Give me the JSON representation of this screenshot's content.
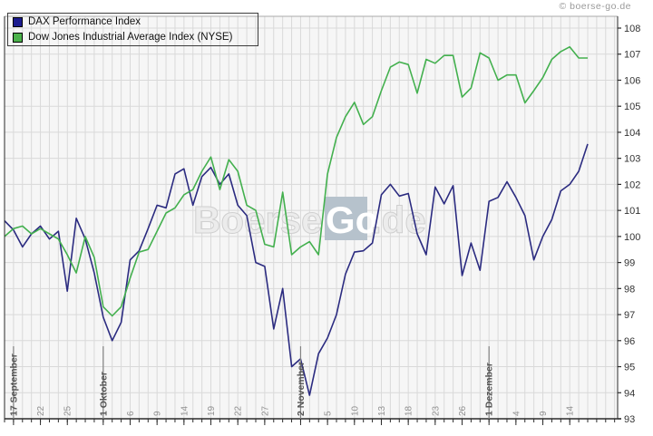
{
  "header": {
    "copyright": "© boerse-go.de"
  },
  "watermark": {
    "part1": "Boerse",
    "part2": "Go",
    "part3": ".de"
  },
  "colors": {
    "dax_line": "#2b2b80",
    "dax_swatch": "#1c1c8f",
    "dow_line": "#43b04e",
    "dow_swatch": "#4cb24c",
    "plot_bg": "#f6f6f6",
    "grid": "#d9d9d9",
    "axis": "#2a2a2a",
    "top_border": "#aaaaaa",
    "month_tick_line": "#828282",
    "watermark_box": "#b6c2cc"
  },
  "chart_data": {
    "type": "line",
    "title": "",
    "xlabel": "",
    "ylabel": "",
    "ylim": [
      93,
      108
    ],
    "grid": true,
    "legend_position": "top-left",
    "y_ticks": [
      93,
      94,
      95,
      96,
      97,
      98,
      99,
      100,
      101,
      102,
      103,
      104,
      105,
      106,
      107,
      108
    ],
    "x_ticks": [
      {
        "i": 1,
        "label": "17 September",
        "major": true
      },
      {
        "i": 4,
        "label": "22"
      },
      {
        "i": 7,
        "label": "25"
      },
      {
        "i": 11,
        "label": "1 Oktober",
        "major": true
      },
      {
        "i": 14,
        "label": "6"
      },
      {
        "i": 17,
        "label": "9"
      },
      {
        "i": 20,
        "label": "14"
      },
      {
        "i": 23,
        "label": "19"
      },
      {
        "i": 26,
        "label": "22"
      },
      {
        "i": 29,
        "label": "27"
      },
      {
        "i": 33,
        "label": "2 November",
        "major": true
      },
      {
        "i": 36,
        "label": "5"
      },
      {
        "i": 39,
        "label": "10"
      },
      {
        "i": 42,
        "label": "13"
      },
      {
        "i": 45,
        "label": "18"
      },
      {
        "i": 48,
        "label": "23"
      },
      {
        "i": 51,
        "label": "26"
      },
      {
        "i": 54,
        "label": "1 Dezember",
        "major": true
      },
      {
        "i": 57,
        "label": "4"
      },
      {
        "i": 60,
        "label": "9"
      },
      {
        "i": 63,
        "label": "14"
      }
    ],
    "series": [
      {
        "name": "DAX Performance Index",
        "color": "#2b2b80",
        "swatch": "#1c1c8f",
        "values": [
          100.6,
          100.25,
          99.6,
          100.1,
          100.4,
          99.9,
          100.2,
          97.9,
          100.7,
          99.9,
          98.6,
          96.9,
          96.0,
          96.7,
          99.1,
          99.45,
          100.3,
          101.2,
          101.1,
          102.4,
          102.6,
          101.2,
          102.3,
          102.65,
          102.0,
          102.4,
          101.2,
          100.8,
          99.0,
          98.85,
          96.45,
          98.0,
          95.0,
          95.3,
          93.9,
          95.5,
          96.1,
          97.0,
          98.55,
          99.4,
          99.45,
          99.75,
          101.6,
          102.0,
          101.55,
          101.65,
          100.1,
          99.3,
          101.9,
          101.25,
          101.95,
          98.5,
          99.75,
          98.7,
          101.35,
          101.5,
          102.1,
          101.5,
          100.8,
          99.1,
          100.0,
          100.65,
          101.75,
          102.0,
          102.5,
          103.55
        ]
      },
      {
        "name": "Dow Jones Industrial Average Index (NYSE)",
        "color": "#43b04e",
        "swatch": "#4cb24c",
        "values": [
          100.0,
          100.3,
          100.4,
          100.1,
          100.3,
          100.1,
          99.9,
          99.3,
          98.6,
          100.0,
          99.2,
          97.3,
          96.95,
          97.3,
          98.4,
          99.4,
          99.5,
          100.2,
          100.9,
          101.1,
          101.6,
          101.8,
          102.5,
          103.05,
          101.8,
          102.95,
          102.5,
          101.2,
          101.0,
          99.7,
          99.6,
          101.7,
          99.3,
          99.6,
          99.8,
          99.3,
          102.4,
          103.8,
          104.6,
          105.15,
          104.3,
          104.6,
          105.6,
          106.5,
          106.7,
          106.6,
          105.5,
          106.8,
          106.65,
          106.95,
          106.95,
          105.35,
          105.7,
          107.05,
          106.85,
          106.0,
          106.2,
          106.2,
          105.13,
          105.6,
          106.1,
          106.8,
          107.1,
          107.28,
          106.85,
          106.85
        ]
      }
    ]
  }
}
